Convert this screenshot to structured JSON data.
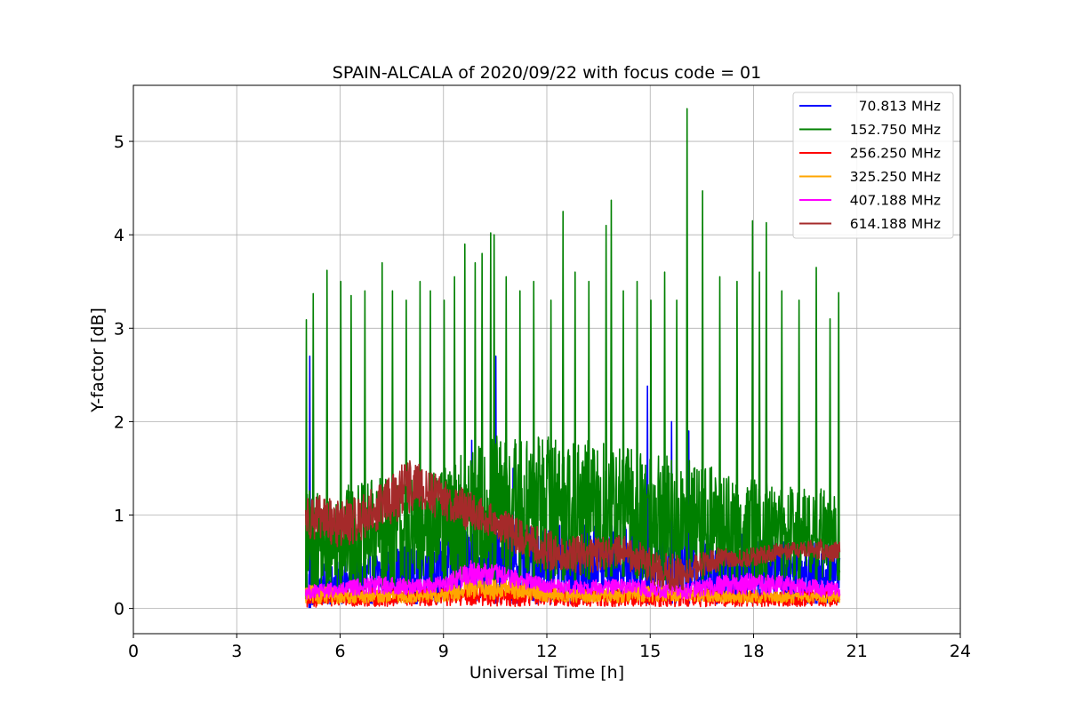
{
  "chart_data": {
    "type": "line",
    "title": "SPAIN-ALCALA of 2020/09/22 with focus code = 01",
    "xlabel": "Universal Time [h]",
    "ylabel": "Y-factor [dB]",
    "xlim": [
      0,
      24
    ],
    "ylim": [
      -0.27,
      5.6
    ],
    "xticks": [
      0,
      3,
      6,
      9,
      12,
      15,
      18,
      21,
      24
    ],
    "yticks": [
      0,
      1,
      2,
      3,
      4,
      5
    ],
    "grid": true,
    "legend_position": "top-right",
    "time_range": [
      5.0,
      20.5
    ],
    "series": [
      {
        "name": "70.813 MHz",
        "color": "#0000ff",
        "envelope": [
          [
            5,
            0.0,
            0.45
          ],
          [
            6,
            0.05,
            0.5
          ],
          [
            7,
            0.05,
            0.6
          ],
          [
            8,
            0.05,
            0.7
          ],
          [
            9,
            0.05,
            0.8
          ],
          [
            10,
            0.05,
            1.0
          ],
          [
            11,
            0.05,
            0.9
          ],
          [
            12,
            0.05,
            0.9
          ],
          [
            13,
            0.05,
            0.9
          ],
          [
            14,
            0.05,
            0.9
          ],
          [
            15,
            0.05,
            0.9
          ],
          [
            16,
            0.05,
            0.85
          ],
          [
            17,
            0.05,
            0.8
          ],
          [
            18,
            0.05,
            0.8
          ],
          [
            19,
            0.05,
            0.75
          ],
          [
            20,
            0.05,
            0.7
          ],
          [
            20.5,
            0.05,
            0.7
          ]
        ],
        "spikes": [
          [
            5.1,
            2.7
          ],
          [
            9.8,
            1.8
          ],
          [
            10.5,
            2.7
          ],
          [
            11,
            1.5
          ],
          [
            14.9,
            2.38
          ],
          [
            15.6,
            2.0
          ],
          [
            16.1,
            1.9
          ],
          [
            19.8,
            1.6
          ]
        ]
      },
      {
        "name": "152.750 MHz",
        "color": "#008000",
        "envelope": [
          [
            5,
            0.1,
            1.3
          ],
          [
            5.5,
            0.15,
            1.2
          ],
          [
            6,
            0.2,
            1.3
          ],
          [
            7,
            0.2,
            1.4
          ],
          [
            8,
            0.25,
            1.4
          ],
          [
            9,
            0.25,
            1.5
          ],
          [
            10,
            0.3,
            1.8
          ],
          [
            11,
            0.3,
            1.9
          ],
          [
            12,
            0.3,
            1.9
          ],
          [
            13,
            0.3,
            1.8
          ],
          [
            14,
            0.35,
            1.8
          ],
          [
            15,
            0.3,
            1.7
          ],
          [
            16,
            0.3,
            1.6
          ],
          [
            17,
            0.3,
            1.5
          ],
          [
            18,
            0.3,
            1.4
          ],
          [
            19,
            0.3,
            1.3
          ],
          [
            20,
            0.3,
            1.3
          ],
          [
            20.5,
            0.3,
            1.2
          ]
        ],
        "spikes": [
          [
            5.0,
            3.09
          ],
          [
            5.2,
            3.37
          ],
          [
            5.6,
            3.62
          ],
          [
            6.0,
            3.5
          ],
          [
            6.3,
            3.35
          ],
          [
            6.7,
            3.4
          ],
          [
            7.2,
            3.7
          ],
          [
            7.5,
            3.4
          ],
          [
            7.9,
            3.3
          ],
          [
            8.3,
            3.5
          ],
          [
            8.6,
            3.4
          ],
          [
            9.0,
            3.3
          ],
          [
            9.3,
            3.55
          ],
          [
            9.6,
            3.9
          ],
          [
            9.9,
            3.7
          ],
          [
            10.1,
            3.8
          ],
          [
            10.35,
            4.02
          ],
          [
            10.45,
            4.0
          ],
          [
            10.8,
            3.55
          ],
          [
            11.2,
            3.4
          ],
          [
            11.6,
            3.5
          ],
          [
            12.1,
            3.3
          ],
          [
            12.45,
            4.25
          ],
          [
            12.8,
            3.6
          ],
          [
            13.2,
            3.5
          ],
          [
            13.7,
            4.1
          ],
          [
            13.85,
            4.37
          ],
          [
            14.2,
            3.4
          ],
          [
            14.6,
            3.5
          ],
          [
            15.0,
            3.3
          ],
          [
            15.4,
            3.6
          ],
          [
            15.75,
            3.3
          ],
          [
            16.05,
            5.35
          ],
          [
            16.5,
            4.47
          ],
          [
            17.0,
            3.55
          ],
          [
            17.5,
            3.5
          ],
          [
            17.95,
            4.15
          ],
          [
            18.15,
            3.6
          ],
          [
            18.35,
            4.13
          ],
          [
            18.8,
            3.4
          ],
          [
            19.3,
            3.3
          ],
          [
            19.8,
            3.65
          ],
          [
            20.2,
            3.1
          ],
          [
            20.45,
            3.38
          ]
        ]
      },
      {
        "name": "256.250 MHz",
        "color": "#ff0000",
        "envelope": [
          [
            5,
            0.0,
            0.2
          ],
          [
            6,
            0.02,
            0.2
          ],
          [
            7,
            0.02,
            0.22
          ],
          [
            8,
            0.02,
            0.2
          ],
          [
            9,
            0.03,
            0.22
          ],
          [
            10,
            0.03,
            0.25
          ],
          [
            11,
            0.02,
            0.25
          ],
          [
            12,
            0.02,
            0.25
          ],
          [
            13,
            0.02,
            0.22
          ],
          [
            14,
            0.02,
            0.2
          ],
          [
            15,
            0.02,
            0.25
          ],
          [
            16,
            0.02,
            0.22
          ],
          [
            17,
            0.02,
            0.2
          ],
          [
            18,
            0.02,
            0.2
          ],
          [
            19,
            0.02,
            0.2
          ],
          [
            20,
            0.02,
            0.2
          ],
          [
            20.5,
            0.02,
            0.18
          ]
        ],
        "spikes": []
      },
      {
        "name": "325.250 MHz",
        "color": "#ffa500",
        "envelope": [
          [
            5,
            0.05,
            0.25
          ],
          [
            6,
            0.05,
            0.22
          ],
          [
            7,
            0.06,
            0.2
          ],
          [
            8,
            0.06,
            0.2
          ],
          [
            9,
            0.07,
            0.22
          ],
          [
            10,
            0.1,
            0.35
          ],
          [
            11,
            0.1,
            0.32
          ],
          [
            12,
            0.07,
            0.25
          ],
          [
            13,
            0.06,
            0.2
          ],
          [
            14,
            0.06,
            0.22
          ],
          [
            15,
            0.07,
            0.25
          ],
          [
            16,
            0.07,
            0.25
          ],
          [
            17,
            0.06,
            0.2
          ],
          [
            18,
            0.06,
            0.2
          ],
          [
            19,
            0.06,
            0.18
          ],
          [
            20,
            0.06,
            0.18
          ],
          [
            20.5,
            0.06,
            0.18
          ]
        ],
        "spikes": []
      },
      {
        "name": "407.188 MHz",
        "color": "#ff00ff",
        "envelope": [
          [
            5,
            0.1,
            0.25
          ],
          [
            6,
            0.12,
            0.28
          ],
          [
            7,
            0.15,
            0.35
          ],
          [
            8,
            0.15,
            0.32
          ],
          [
            9,
            0.17,
            0.35
          ],
          [
            9.8,
            0.25,
            0.52
          ],
          [
            10.5,
            0.25,
            0.48
          ],
          [
            11,
            0.22,
            0.42
          ],
          [
            12,
            0.17,
            0.32
          ],
          [
            13,
            0.15,
            0.3
          ],
          [
            14,
            0.15,
            0.32
          ],
          [
            15,
            0.12,
            0.3
          ],
          [
            16,
            0.1,
            0.28
          ],
          [
            17,
            0.15,
            0.35
          ],
          [
            18,
            0.15,
            0.38
          ],
          [
            19,
            0.15,
            0.35
          ],
          [
            20,
            0.12,
            0.3
          ],
          [
            20.5,
            0.12,
            0.28
          ]
        ],
        "spikes": []
      },
      {
        "name": "614.188 MHz",
        "color": "#a52a2a",
        "envelope": [
          [
            5,
            0.75,
            1.25
          ],
          [
            5.5,
            0.7,
            1.2
          ],
          [
            6,
            0.65,
            1.15
          ],
          [
            6.5,
            0.7,
            1.2
          ],
          [
            7,
            0.8,
            1.3
          ],
          [
            7.5,
            0.9,
            1.45
          ],
          [
            8,
            1.0,
            1.6
          ],
          [
            8.5,
            1.0,
            1.5
          ],
          [
            9,
            0.95,
            1.4
          ],
          [
            9.5,
            0.85,
            1.3
          ],
          [
            10,
            0.8,
            1.2
          ],
          [
            10.5,
            0.75,
            1.1
          ],
          [
            11,
            0.6,
            1.0
          ],
          [
            11.5,
            0.55,
            0.9
          ],
          [
            12,
            0.4,
            0.85
          ],
          [
            12.5,
            0.4,
            0.75
          ],
          [
            13,
            0.35,
            0.8
          ],
          [
            13.5,
            0.4,
            0.75
          ],
          [
            14,
            0.45,
            0.8
          ],
          [
            14.5,
            0.35,
            0.75
          ],
          [
            15,
            0.25,
            0.65
          ],
          [
            15.5,
            0.15,
            0.6
          ],
          [
            16,
            0.2,
            0.55
          ],
          [
            16.5,
            0.35,
            0.6
          ],
          [
            17,
            0.4,
            0.65
          ],
          [
            17.5,
            0.45,
            0.62
          ],
          [
            18,
            0.45,
            0.65
          ],
          [
            18.5,
            0.5,
            0.7
          ],
          [
            19,
            0.5,
            0.7
          ],
          [
            19.5,
            0.55,
            0.72
          ],
          [
            20,
            0.5,
            0.75
          ],
          [
            20.5,
            0.5,
            0.72
          ]
        ],
        "spikes": []
      }
    ]
  }
}
